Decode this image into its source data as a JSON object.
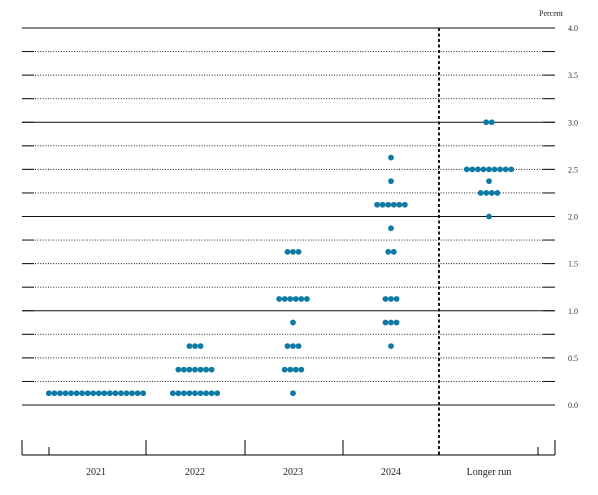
{
  "chart_data": {
    "type": "scatter",
    "unit_label": "Percent",
    "categories": [
      "2021",
      "2022",
      "2023",
      "2024",
      "Longer run"
    ],
    "ylim": [
      -0.5,
      4.0
    ],
    "y_ticks": [
      "4.0",
      "3.5",
      "3.0",
      "2.5",
      "2.0",
      "1.5",
      "1.0",
      "0.5",
      "0.0"
    ],
    "grid": "horizontal lines every 0.25 percent; solid at whole numbers, dotted otherwise",
    "separator": "dashed vertical line between 2024 and Longer run",
    "dot_color": "#0f7aa3",
    "points": [
      {
        "category": "2021",
        "rate": 0.125,
        "count": 18
      },
      {
        "category": "2022",
        "rate": 0.125,
        "count": 9
      },
      {
        "category": "2022",
        "rate": 0.375,
        "count": 7
      },
      {
        "category": "2022",
        "rate": 0.625,
        "count": 3
      },
      {
        "category": "2023",
        "rate": 0.125,
        "count": 1
      },
      {
        "category": "2023",
        "rate": 0.375,
        "count": 4
      },
      {
        "category": "2023",
        "rate": 0.625,
        "count": 3
      },
      {
        "category": "2023",
        "rate": 0.875,
        "count": 1
      },
      {
        "category": "2023",
        "rate": 1.125,
        "count": 6
      },
      {
        "category": "2023",
        "rate": 1.625,
        "count": 3
      },
      {
        "category": "2024",
        "rate": 0.625,
        "count": 1
      },
      {
        "category": "2024",
        "rate": 0.875,
        "count": 3
      },
      {
        "category": "2024",
        "rate": 1.125,
        "count": 3
      },
      {
        "category": "2024",
        "rate": 1.625,
        "count": 2
      },
      {
        "category": "2024",
        "rate": 1.875,
        "count": 1
      },
      {
        "category": "2024",
        "rate": 2.125,
        "count": 6
      },
      {
        "category": "2024",
        "rate": 2.375,
        "count": 1
      },
      {
        "category": "2024",
        "rate": 2.625,
        "count": 1
      },
      {
        "category": "Longer run",
        "rate": 2.0,
        "count": 1
      },
      {
        "category": "Longer run",
        "rate": 2.25,
        "count": 4
      },
      {
        "category": "Longer run",
        "rate": 2.375,
        "count": 1
      },
      {
        "category": "Longer run",
        "rate": 2.5,
        "count": 9
      },
      {
        "category": "Longer run",
        "rate": 3.0,
        "count": 2
      }
    ]
  }
}
